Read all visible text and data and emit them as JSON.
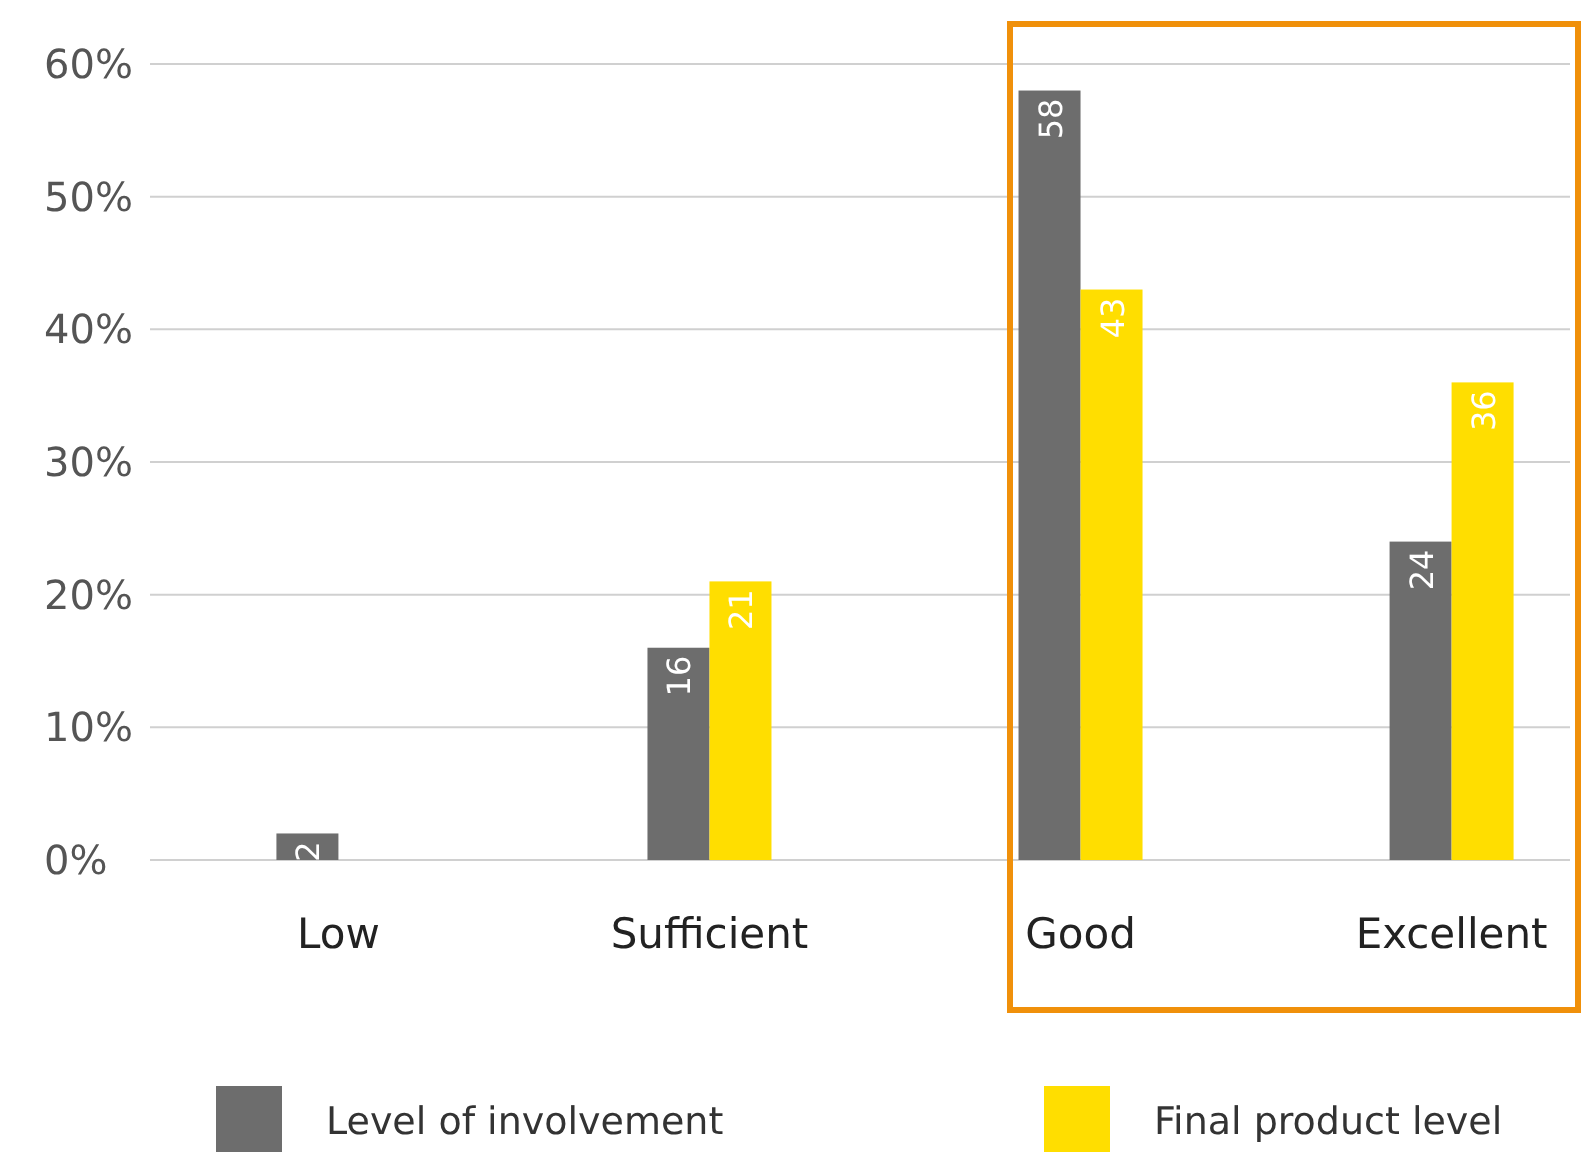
{
  "chart_data": {
    "type": "bar",
    "categories": [
      "Low",
      "Sufficient",
      "Good",
      "Excellent"
    ],
    "series": [
      {
        "name": "Level of involvement",
        "color": "#6d6d6d",
        "values": [
          2,
          16,
          58,
          24
        ]
      },
      {
        "name": "Final product level",
        "color": "#ffde00",
        "values": [
          null,
          21,
          43,
          36
        ]
      }
    ],
    "ylim": [
      0,
      60
    ],
    "yticks": [
      {
        "value": 0,
        "label": "0%"
      },
      {
        "value": 10,
        "label": "10%"
      },
      {
        "value": 20,
        "label": "20%"
      },
      {
        "value": 30,
        "label": "30%"
      },
      {
        "value": 40,
        "label": "40%"
      },
      {
        "value": 50,
        "label": "50%"
      },
      {
        "value": 60,
        "label": "60%"
      }
    ],
    "grid": "y",
    "data_labels": true,
    "legend": "bottom"
  }
}
